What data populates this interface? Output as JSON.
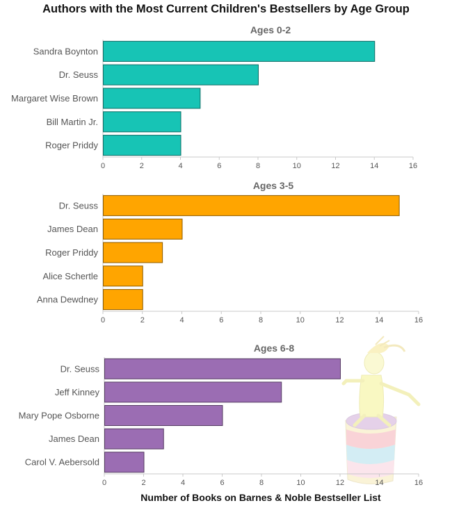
{
  "title": "Authors with the Most Current Children's Bestsellers by Age Group",
  "chart_data": {
    "type": "bar",
    "orientation": "horizontal",
    "xlabel": "Number of Books on Barnes & Noble Bestseller List",
    "xlim": [
      0,
      16
    ],
    "x_ticks": [
      "0",
      "2",
      "4",
      "6",
      "8",
      "10",
      "12",
      "14",
      "16"
    ],
    "panels": [
      {
        "subtitle": "Ages 0-2",
        "color": "#17c4b5",
        "categories": [
          "Sandra Boynton",
          "Dr. Seuss",
          "Margaret Wise Brown",
          "Bill Martin Jr.",
          "Roger Priddy"
        ],
        "values": [
          14,
          8,
          5,
          4,
          4
        ]
      },
      {
        "subtitle": "Ages 3-5",
        "color": "#ffa500",
        "categories": [
          "Dr. Seuss",
          "James Dean",
          "Roger Priddy",
          "Alice Schertle",
          "Anna Dewdney"
        ],
        "values": [
          15,
          4,
          3,
          2,
          2
        ]
      },
      {
        "subtitle": "Ages 6-8",
        "color": "#9b6db3",
        "categories": [
          "Dr. Seuss",
          "Jeff Kinney",
          "Mary Pope Osborne",
          "James Dean",
          "Carol V. Aebersold"
        ],
        "values": [
          12,
          9,
          6,
          3,
          2
        ]
      }
    ]
  }
}
